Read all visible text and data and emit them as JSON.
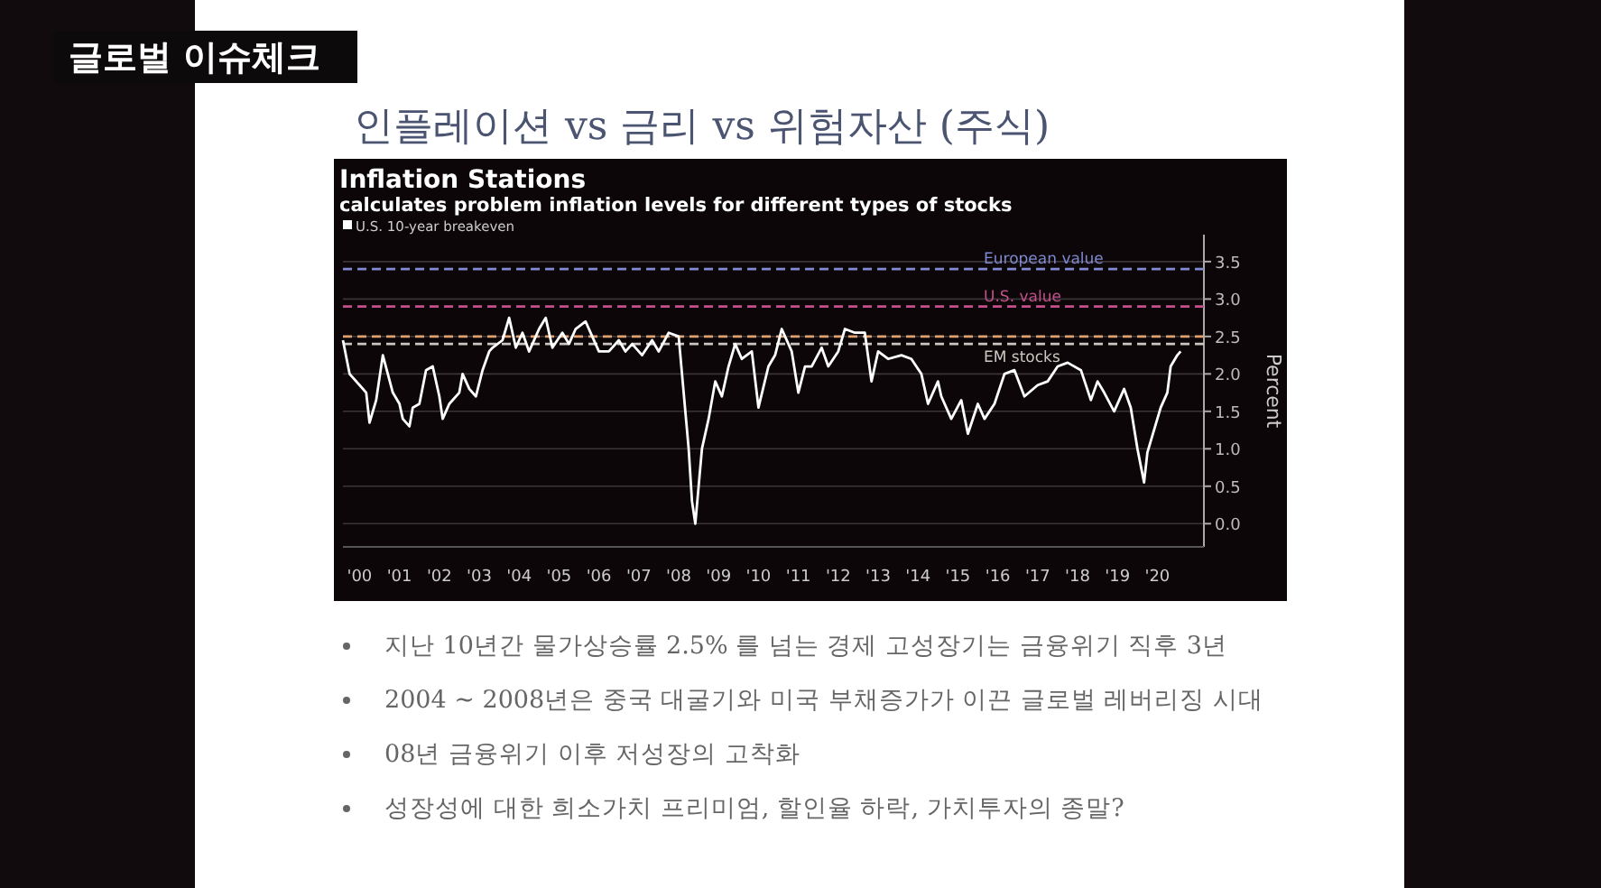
{
  "chart_data": {
    "type": "line",
    "title": "Inflation Stations",
    "subtitle": "calculates problem inflation levels for different types of stocks",
    "ylabel": "Percent",
    "xlim": [
      "2000-02",
      "2021-09"
    ],
    "ylim": [
      -0.31,
      3.86
    ],
    "xticks": [
      {
        "value": "2000-07",
        "label": "'00"
      },
      {
        "value": "2001-07",
        "label": "'01"
      },
      {
        "value": "2002-07",
        "label": "'02"
      },
      {
        "value": "2003-07",
        "label": "'03"
      },
      {
        "value": "2004-07",
        "label": "'04"
      },
      {
        "value": "2005-07",
        "label": "'05"
      },
      {
        "value": "2006-07",
        "label": "'06"
      },
      {
        "value": "2007-07",
        "label": "'07"
      },
      {
        "value": "2008-07",
        "label": "'08"
      },
      {
        "value": "2009-07",
        "label": "'09"
      },
      {
        "value": "2010-07",
        "label": "'10"
      },
      {
        "value": "2011-07",
        "label": "'11"
      },
      {
        "value": "2012-07",
        "label": "'12"
      },
      {
        "value": "2013-07",
        "label": "'13"
      },
      {
        "value": "2014-07",
        "label": "'14"
      },
      {
        "value": "2015-07",
        "label": "'15"
      },
      {
        "value": "2016-07",
        "label": "'16"
      },
      {
        "value": "2017-07",
        "label": "'17"
      },
      {
        "value": "2018-07",
        "label": "'18"
      },
      {
        "value": "2019-07",
        "label": "'19"
      },
      {
        "value": "2020-07",
        "label": "'20"
      }
    ],
    "yticks": [
      {
        "value": 0,
        "label": "0.0"
      },
      {
        "value": 0.5,
        "label": "0.5"
      },
      {
        "value": 1,
        "label": "1.0"
      },
      {
        "value": 1.5,
        "label": "1.5"
      },
      {
        "value": 2,
        "label": "2.0"
      },
      {
        "value": 2.5,
        "label": "2.5"
      },
      {
        "value": 3,
        "label": "3.0"
      },
      {
        "value": 3.5,
        "label": "3.5"
      }
    ],
    "grid": "y",
    "legend": "top left",
    "marker": "none",
    "line_style": "solid",
    "series": [
      {
        "name": "U.S. 10-year breakeven",
        "color": "#ffffff",
        "x": [
          "2000-02",
          "2000-04",
          "2000-07",
          "2000-09",
          "2000-10",
          "2000-12",
          "2001-02",
          "2001-05",
          "2001-07",
          "2001-08",
          "2001-10",
          "2001-11",
          "2002-01",
          "2002-03",
          "2002-05",
          "2002-07",
          "2002-08",
          "2002-10",
          "2003-01",
          "2003-02",
          "2003-04",
          "2003-06",
          "2003-08",
          "2003-10",
          "2003-11",
          "2004-02",
          "2004-04",
          "2004-06",
          "2004-08",
          "2004-10",
          "2005-01",
          "2005-03",
          "2005-05",
          "2005-08",
          "2005-10",
          "2005-12",
          "2006-03",
          "2006-05",
          "2006-07",
          "2006-10",
          "2007-01",
          "2007-03",
          "2007-05",
          "2007-08",
          "2007-11",
          "2008-01",
          "2008-04",
          "2008-07",
          "2008-08",
          "2008-10",
          "2008-11",
          "2008-12",
          "2009-01",
          "2009-02",
          "2009-04",
          "2009-06",
          "2009-08",
          "2009-10",
          "2009-12",
          "2010-02",
          "2010-05",
          "2010-07",
          "2010-10",
          "2010-12",
          "2011-02",
          "2011-05",
          "2011-07",
          "2011-09",
          "2011-11",
          "2012-02",
          "2012-04",
          "2012-07",
          "2012-09",
          "2012-12",
          "2013-03",
          "2013-05",
          "2013-07",
          "2013-10",
          "2014-02",
          "2014-05",
          "2014-08",
          "2014-10",
          "2015-01",
          "2015-02",
          "2015-05",
          "2015-08",
          "2015-10",
          "2016-01",
          "2016-03",
          "2016-06",
          "2016-09",
          "2016-12",
          "2017-03",
          "2017-07",
          "2017-10",
          "2018-01",
          "2018-04",
          "2018-08",
          "2018-11",
          "2019-01",
          "2019-03",
          "2019-06",
          "2019-09",
          "2019-11",
          "2020-01",
          "2020-03",
          "2020-04",
          "2020-08",
          "2020-10",
          "2020-11",
          "2021-01",
          "2021-02"
        ],
        "values": [
          2.45,
          2.0,
          1.85,
          1.75,
          1.35,
          1.65,
          2.25,
          1.75,
          1.6,
          1.4,
          1.3,
          1.55,
          1.6,
          2.05,
          2.1,
          1.7,
          1.4,
          1.6,
          1.75,
          2.0,
          1.8,
          1.7,
          2.05,
          2.3,
          2.35,
          2.45,
          2.75,
          2.35,
          2.55,
          2.3,
          2.6,
          2.75,
          2.35,
          2.55,
          2.4,
          2.6,
          2.7,
          2.5,
          2.3,
          2.3,
          2.45,
          2.3,
          2.4,
          2.25,
          2.45,
          2.3,
          2.55,
          2.5,
          2.0,
          1.0,
          0.3,
          0.0,
          0.5,
          1.0,
          1.4,
          1.9,
          1.7,
          2.1,
          2.4,
          2.2,
          2.3,
          1.55,
          2.1,
          2.25,
          2.6,
          2.3,
          1.75,
          2.1,
          2.1,
          2.35,
          2.1,
          2.3,
          2.6,
          2.55,
          2.55,
          1.9,
          2.3,
          2.2,
          2.25,
          2.2,
          2.0,
          1.6,
          1.9,
          1.7,
          1.4,
          1.65,
          1.2,
          1.6,
          1.4,
          1.6,
          2.0,
          2.05,
          1.7,
          1.85,
          1.9,
          2.1,
          2.15,
          2.05,
          1.65,
          1.9,
          1.75,
          1.5,
          1.8,
          1.55,
          1.0,
          0.55,
          0.95,
          1.55,
          1.75,
          2.1,
          2.25,
          2.3
        ]
      }
    ],
    "ref_lines": [
      {
        "axis": "y",
        "value": 3.4,
        "label": "European value",
        "color": "#7f8ad0",
        "line_style": "dashed"
      },
      {
        "axis": "y",
        "value": 2.9,
        "label": "U.S. value",
        "color": "#c4508c",
        "line_style": "dashed"
      },
      {
        "axis": "y",
        "value": 2.5,
        "label": null,
        "color": "#e0a070",
        "line_style": "dashed"
      },
      {
        "axis": "y",
        "value": 2.4,
        "label": "EM stocks",
        "color": "#c8c8c0",
        "line_style": "dashed"
      }
    ],
    "annotations": [
      "글로벌 이슈체크",
      "인플레이션 vs 금리 vs 위험자산 (주식)",
      "지난 10년간 물가상승률 2.5% 를 넘는 경제 고성장기는 금융위기 직후 3년",
      "2004 ~ 2008년은 중국 대굴기와 미국 부채증가가 이끈 글로벌 레버리징 시대",
      "08년 금융위기 이후 저성장의 고착화",
      "성장성에 대한 희소가치 프리미엄, 할인율 하락, 가치투자의 종말?"
    ]
  }
}
